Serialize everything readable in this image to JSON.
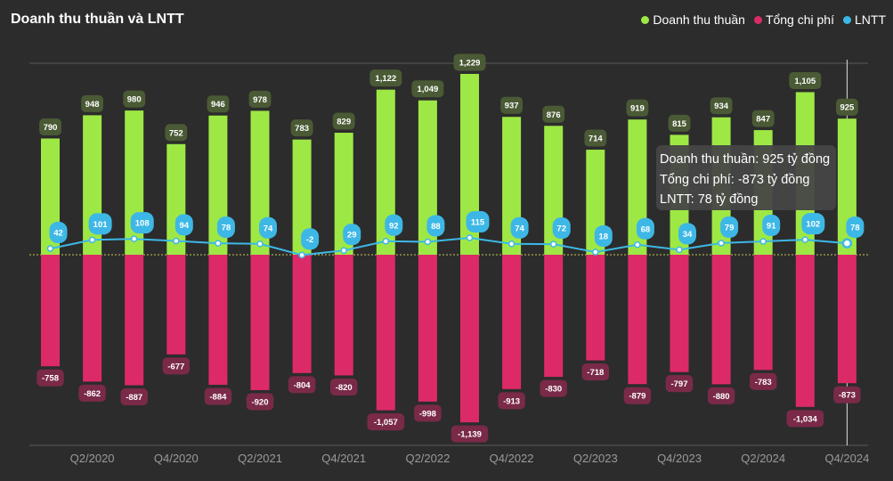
{
  "title": "Doanh thu thuần và LNTT",
  "legend": [
    {
      "label": "Doanh thu thuần",
      "color": "#9ee845"
    },
    {
      "label": "Tổng chi phí",
      "color": "#dc2a68"
    },
    {
      "label": "LNTT",
      "color": "#3db8e6"
    }
  ],
  "tooltip": {
    "line1": "Doanh thu thuần: 925 tỷ đồng",
    "line2": "Tổng chi phí: -873 tỷ đồng",
    "line3": "LNTT: 78 tỷ đồng"
  },
  "chart_data": {
    "type": "bar",
    "title": "Doanh thu thuần và LNTT",
    "categories": [
      "Q1/2020",
      "Q2/2020",
      "Q3/2020",
      "Q4/2020",
      "Q1/2021",
      "Q2/2021",
      "Q3/2021",
      "Q4/2021",
      "Q1/2022",
      "Q2/2022",
      "Q3/2022",
      "Q4/2022",
      "Q1/2023",
      "Q2/2023",
      "Q3/2023",
      "Q4/2023",
      "Q1/2024",
      "Q2/2024",
      "Q3/2024",
      "Q4/2024"
    ],
    "tick_labels": [
      "Q2/2020",
      "Q4/2020",
      "Q2/2021",
      "Q4/2021",
      "Q2/2022",
      "Q4/2022",
      "Q2/2023",
      "Q4/2023",
      "Q2/2024",
      "Q4/2024"
    ],
    "series": [
      {
        "name": "Doanh thu thuần",
        "type": "bar",
        "color": "#9ee845",
        "label_bg": "#4a5a35",
        "values": [
          790,
          948,
          980,
          752,
          946,
          978,
          783,
          829,
          1122,
          1049,
          1229,
          937,
          876,
          714,
          919,
          815,
          934,
          847,
          1105,
          925
        ],
        "labels": [
          "790",
          "948",
          "980",
          "752",
          "946",
          "978",
          "783",
          "829",
          "1,122",
          "1,049",
          "1,229",
          "937",
          "876",
          "714",
          "919",
          "815",
          "934",
          "847",
          "1,105",
          "925"
        ]
      },
      {
        "name": "Tổng chi phí",
        "type": "bar",
        "color": "#dc2a68",
        "label_bg": "#7a2a48",
        "values": [
          -758,
          -862,
          -887,
          -677,
          -884,
          -920,
          -804,
          -820,
          -1057,
          -998,
          -1139,
          -913,
          -830,
          -718,
          -879,
          -797,
          -880,
          -783,
          -1034,
          -873
        ],
        "labels": [
          "-758",
          "-862",
          "-887",
          "-677",
          "-884",
          "-920",
          "-804",
          "-820",
          "-1,057",
          "-998",
          "-1,139",
          "-913",
          "-830",
          "-718",
          "-879",
          "-797",
          "-880",
          "-783",
          "-1,034",
          "-873"
        ]
      },
      {
        "name": "LNTT",
        "type": "line",
        "color": "#3db8e6",
        "label_bg": "#3db8e6",
        "values": [
          42,
          101,
          108,
          94,
          78,
          74,
          -2,
          29,
          92,
          88,
          115,
          74,
          72,
          18,
          68,
          34,
          79,
          91,
          102,
          78
        ],
        "labels": [
          "42",
          "101",
          "108",
          "94",
          "78",
          "74",
          "-2",
          "29",
          "92",
          "88",
          "115",
          "74",
          "72",
          "18",
          "68",
          "34",
          "79",
          "91",
          "102",
          "78"
        ]
      }
    ],
    "ylim": [
      -1300,
      1350
    ],
    "grid": false,
    "legend_position": "top-right",
    "highlighted_category": "Q4/2024"
  }
}
